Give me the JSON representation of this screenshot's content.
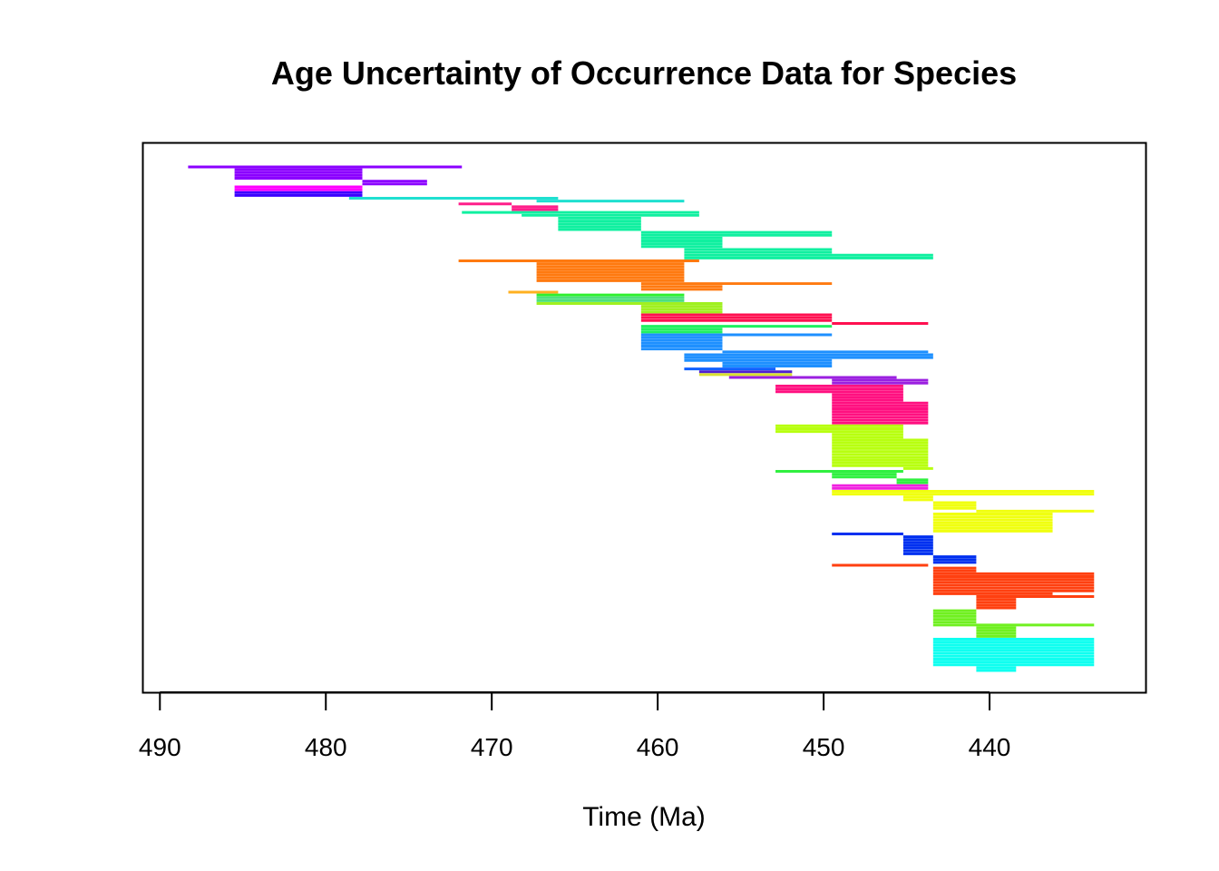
{
  "chart_data": {
    "type": "range",
    "title": "Age Uncertainty of Occurrence Data for Species",
    "xlabel": "Time (Ma)",
    "ylabel": "",
    "x_reversed": true,
    "xlim": [
      491,
      430.6
    ],
    "x_ticks": [
      490,
      480,
      470,
      460,
      450,
      440
    ],
    "grid": false,
    "legend": "none",
    "species": [
      {
        "color": "#8B00FF",
        "ranges": [
          [
            488.3,
            471.8,
            1
          ],
          [
            485.5,
            477.8,
            1
          ],
          [
            485.5,
            477.8,
            1
          ],
          [
            485.5,
            477.8,
            1
          ],
          [
            485.5,
            477.8,
            1
          ],
          [
            477.8,
            473.9,
            1
          ],
          [
            477.8,
            473.9,
            1
          ]
        ]
      },
      {
        "color": "#FF00FF",
        "ranges": [
          [
            485.5,
            477.8,
            1
          ],
          [
            485.5,
            477.8,
            1
          ]
        ]
      },
      {
        "color": "#3B00FF",
        "ranges": [
          [
            485.5,
            477.8,
            1
          ],
          [
            485.5,
            477.8,
            1
          ]
        ]
      },
      {
        "color": "#1FE0D0",
        "ranges": [
          [
            478.6,
            466.0,
            1
          ],
          [
            467.3,
            458.4,
            1
          ]
        ]
      },
      {
        "color": "#FF1E8A",
        "ranges": [
          [
            472.0,
            468.8,
            1
          ],
          [
            468.8,
            466.0,
            1
          ],
          [
            468.8,
            466.0,
            1
          ]
        ]
      },
      {
        "color": "#10F0A0",
        "ranges": [
          [
            471.8,
            457.5,
            1
          ],
          [
            468.2,
            457.5,
            1
          ],
          [
            466.0,
            461.0,
            1
          ],
          [
            466.0,
            461.0,
            1
          ],
          [
            466.0,
            461.0,
            1
          ],
          [
            466.0,
            461.0,
            1
          ],
          [
            466.0,
            461.0,
            1
          ],
          [
            461.0,
            449.5,
            1
          ],
          [
            461.0,
            449.5,
            1
          ],
          [
            461.0,
            456.1,
            1
          ],
          [
            461.0,
            456.1,
            1
          ],
          [
            461.0,
            456.1,
            1
          ],
          [
            461.0,
            456.1,
            1
          ],
          [
            458.4,
            449.5,
            1
          ],
          [
            458.4,
            449.5,
            1
          ],
          [
            458.4,
            443.4,
            1
          ],
          [
            458.4,
            443.4,
            1
          ]
        ]
      },
      {
        "color": "#FF7A10",
        "ranges": [
          [
            472.0,
            457.5,
            1
          ],
          [
            467.3,
            458.4,
            1
          ],
          [
            467.3,
            458.4,
            1
          ],
          [
            467.3,
            458.4,
            1
          ],
          [
            467.3,
            458.4,
            1
          ],
          [
            467.3,
            458.4,
            1
          ],
          [
            467.3,
            458.4,
            1
          ],
          [
            467.3,
            458.4,
            1
          ],
          [
            461.0,
            449.5,
            1
          ],
          [
            461.0,
            456.1,
            1
          ],
          [
            461.0,
            456.1,
            1
          ]
        ]
      },
      {
        "color": "#FFB020",
        "ranges": [
          [
            469.0,
            466.0,
            1
          ]
        ]
      },
      {
        "color": "#2EF02E",
        "ranges": [
          [
            467.3,
            458.4,
            1
          ]
        ]
      },
      {
        "color": "#4EE07E",
        "ranges": [
          [
            467.3,
            458.4,
            1
          ],
          [
            467.3,
            458.4,
            1
          ]
        ]
      },
      {
        "color": "#A0F020",
        "ranges": [
          [
            467.3,
            456.1,
            1
          ],
          [
            461.0,
            456.1,
            1
          ],
          [
            461.0,
            456.1,
            1
          ],
          [
            461.0,
            456.1,
            1
          ]
        ]
      },
      {
        "color": "#FF1050",
        "ranges": [
          [
            461.0,
            449.5,
            1
          ],
          [
            461.0,
            449.5,
            1
          ],
          [
            461.0,
            449.5,
            1
          ],
          [
            449.5,
            443.7,
            1
          ]
        ]
      },
      {
        "color": "#20F060",
        "ranges": [
          [
            461.0,
            449.5,
            1
          ],
          [
            461.0,
            456.1,
            1
          ],
          [
            461.0,
            456.1,
            1
          ]
        ]
      },
      {
        "color": "#1E90FF",
        "ranges": [
          [
            461.0,
            449.5,
            1
          ],
          [
            461.0,
            456.1,
            1
          ],
          [
            461.0,
            456.1,
            1
          ],
          [
            461.0,
            456.1,
            1
          ],
          [
            461.0,
            456.1,
            1
          ],
          [
            461.0,
            456.1,
            1
          ],
          [
            456.1,
            443.7,
            1
          ],
          [
            458.4,
            443.4,
            1
          ],
          [
            458.4,
            443.4,
            1
          ],
          [
            458.4,
            449.5,
            1
          ],
          [
            456.1,
            449.5,
            1
          ],
          [
            456.1,
            449.5,
            1
          ]
        ]
      },
      {
        "color": "#1060FF",
        "ranges": [
          [
            458.4,
            452.9,
            1
          ]
        ]
      },
      {
        "color": "#5020D0",
        "ranges": [
          [
            457.5,
            451.9,
            1
          ]
        ]
      },
      {
        "color": "#D8E030",
        "ranges": [
          [
            457.5,
            451.9,
            1
          ]
        ]
      },
      {
        "color": "#9B20E0",
        "ranges": [
          [
            455.7,
            445.6,
            1
          ],
          [
            449.5,
            443.7,
            1
          ],
          [
            449.5,
            443.7,
            1
          ]
        ]
      },
      {
        "color": "#FF1080",
        "ranges": [
          [
            452.9,
            445.2,
            1
          ],
          [
            452.9,
            445.2,
            1
          ],
          [
            452.9,
            445.2,
            1
          ],
          [
            449.5,
            445.2,
            1
          ],
          [
            449.5,
            445.2,
            1
          ],
          [
            449.5,
            445.2,
            1
          ],
          [
            449.5,
            443.7,
            1
          ],
          [
            449.5,
            443.7,
            1
          ],
          [
            449.5,
            443.7,
            1
          ],
          [
            449.5,
            443.7,
            1
          ],
          [
            449.5,
            443.7,
            1
          ],
          [
            449.5,
            443.7,
            1
          ],
          [
            449.5,
            443.7,
            1
          ],
          [
            449.5,
            443.7,
            1
          ]
        ]
      },
      {
        "color": "#B8FF10",
        "ranges": [
          [
            452.9,
            445.2,
            1
          ],
          [
            452.9,
            445.2,
            1
          ],
          [
            452.9,
            445.2,
            1
          ],
          [
            449.5,
            445.2,
            1
          ],
          [
            449.5,
            445.2,
            1
          ],
          [
            449.5,
            443.7,
            1
          ],
          [
            449.5,
            443.7,
            1
          ],
          [
            449.5,
            443.7,
            1
          ],
          [
            449.5,
            443.7,
            1
          ],
          [
            449.5,
            443.7,
            1
          ],
          [
            449.5,
            443.7,
            1
          ],
          [
            449.5,
            443.7,
            1
          ],
          [
            449.5,
            443.7,
            1
          ],
          [
            449.5,
            443.7,
            1
          ],
          [
            449.5,
            443.7,
            1
          ],
          [
            445.2,
            443.4,
            1
          ]
        ]
      },
      {
        "color": "#30F040",
        "ranges": [
          [
            452.9,
            445.2,
            1
          ],
          [
            449.5,
            445.6,
            1
          ],
          [
            449.5,
            445.6,
            1
          ],
          [
            445.6,
            443.7,
            1
          ],
          [
            445.6,
            443.7,
            1
          ]
        ]
      },
      {
        "color": "#F020E0",
        "ranges": [
          [
            449.5,
            443.7,
            1
          ],
          [
            449.5,
            443.7,
            1
          ]
        ]
      },
      {
        "color": "#F0FF10",
        "ranges": [
          [
            449.5,
            433.7,
            1
          ],
          [
            449.5,
            433.7,
            1
          ],
          [
            445.2,
            443.4,
            1
          ],
          [
            445.2,
            443.4,
            1
          ],
          [
            443.4,
            440.8,
            1
          ],
          [
            443.4,
            440.8,
            1
          ],
          [
            443.4,
            440.8,
            1
          ],
          [
            440.8,
            433.7,
            1
          ],
          [
            443.4,
            436.2,
            1
          ],
          [
            443.4,
            436.2,
            1
          ],
          [
            443.4,
            436.2,
            1
          ],
          [
            443.4,
            436.2,
            1
          ],
          [
            443.4,
            436.2,
            1
          ],
          [
            443.4,
            436.2,
            1
          ],
          [
            443.4,
            436.2,
            1
          ]
        ]
      },
      {
        "color": "#0030F0",
        "ranges": [
          [
            449.5,
            445.2,
            1
          ],
          [
            445.2,
            443.4,
            1
          ],
          [
            445.2,
            443.4,
            1
          ],
          [
            445.2,
            443.4,
            1
          ],
          [
            445.2,
            443.4,
            1
          ],
          [
            445.2,
            443.4,
            1
          ],
          [
            445.2,
            443.4,
            1
          ],
          [
            445.2,
            443.4,
            1
          ],
          [
            443.4,
            440.8,
            1
          ],
          [
            443.4,
            440.8,
            1
          ],
          [
            443.4,
            440.8,
            1
          ]
        ]
      },
      {
        "color": "#FF4010",
        "ranges": [
          [
            449.5,
            443.7,
            1
          ],
          [
            443.4,
            440.8,
            1
          ],
          [
            443.4,
            440.8,
            1
          ],
          [
            443.4,
            433.7,
            1
          ],
          [
            443.4,
            433.7,
            1
          ],
          [
            443.4,
            433.7,
            1
          ],
          [
            443.4,
            433.7,
            1
          ],
          [
            443.4,
            433.7,
            1
          ],
          [
            443.4,
            433.7,
            1
          ],
          [
            443.4,
            433.7,
            1
          ],
          [
            443.4,
            436.2,
            1
          ],
          [
            440.8,
            433.7,
            1
          ],
          [
            440.8,
            438.4,
            1
          ],
          [
            440.8,
            438.4,
            1
          ],
          [
            440.8,
            438.4,
            1
          ],
          [
            440.8,
            438.4,
            1
          ]
        ]
      },
      {
        "color": "#70F020",
        "ranges": [
          [
            443.4,
            440.8,
            1
          ],
          [
            443.4,
            440.8,
            1
          ],
          [
            443.4,
            440.8,
            1
          ],
          [
            443.4,
            440.8,
            1
          ],
          [
            443.4,
            440.8,
            1
          ],
          [
            443.4,
            433.7,
            1
          ],
          [
            440.8,
            438.4,
            1
          ],
          [
            440.8,
            438.4,
            1
          ],
          [
            440.8,
            438.4,
            1
          ],
          [
            440.8,
            438.4,
            1
          ]
        ]
      },
      {
        "color": "#10FFF0",
        "ranges": [
          [
            443.4,
            433.7,
            1
          ],
          [
            443.4,
            433.7,
            1
          ],
          [
            443.4,
            433.7,
            1
          ],
          [
            443.4,
            433.7,
            1
          ],
          [
            443.4,
            433.7,
            1
          ],
          [
            443.4,
            433.7,
            1
          ],
          [
            443.4,
            433.7,
            1
          ],
          [
            443.4,
            433.7,
            1
          ],
          [
            443.4,
            433.7,
            1
          ],
          [
            443.4,
            433.7,
            1
          ],
          [
            440.8,
            438.4,
            1
          ],
          [
            440.8,
            438.4,
            1
          ]
        ]
      }
    ]
  }
}
